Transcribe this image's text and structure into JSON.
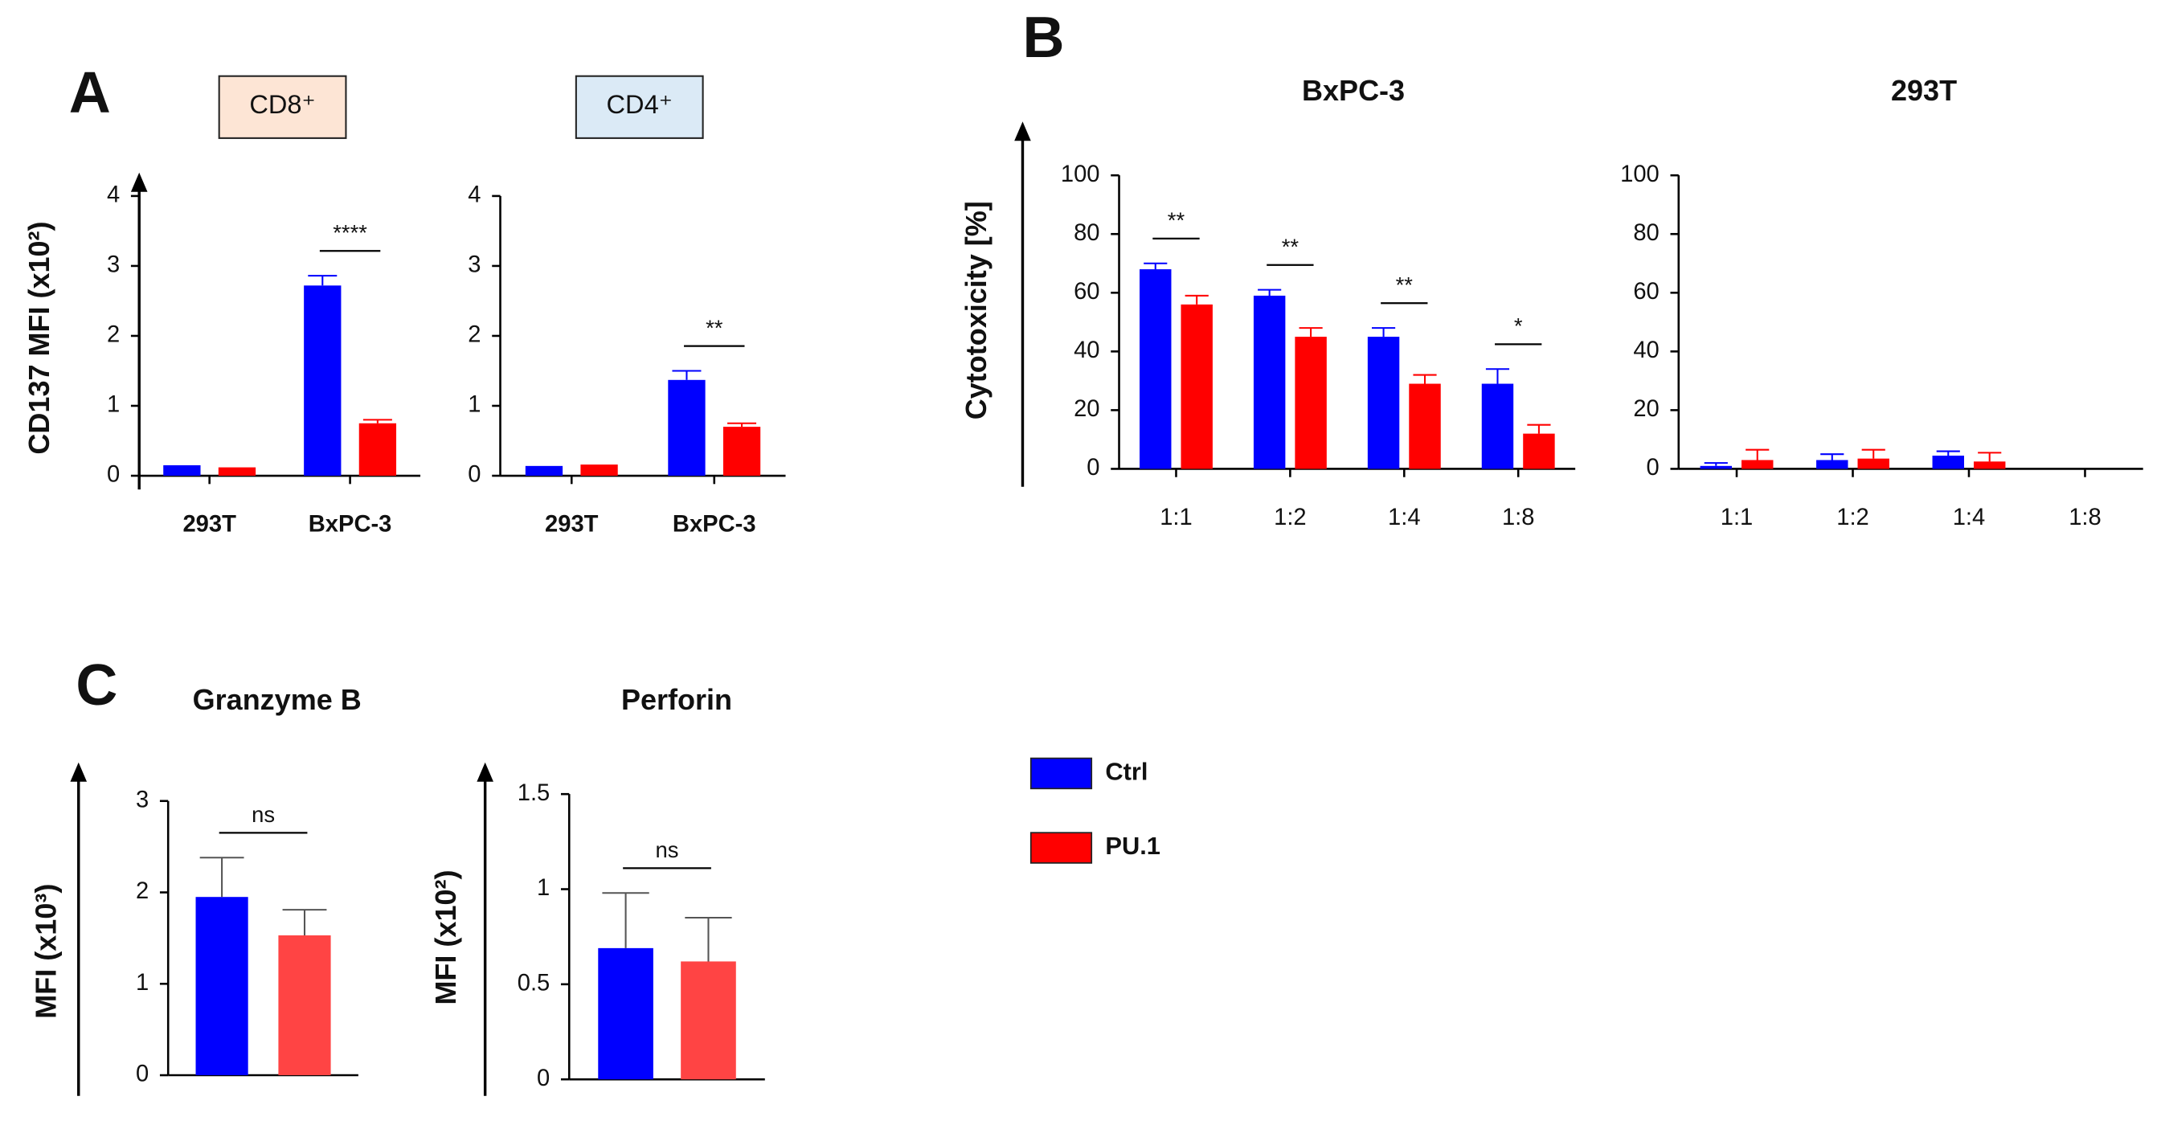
{
  "chart_data": [
    {
      "type": "bar",
      "panel": "A",
      "title": "CD8⁺",
      "title_box_color": "#fde5d5",
      "ylabel": "CD137 MFI (x10²)",
      "categories": [
        "293T",
        "BxPC-3"
      ],
      "series": [
        {
          "color": "#0000ff",
          "values": [
            0.15,
            2.72
          ],
          "errors": [
            null,
            0.14
          ]
        },
        {
          "color": "#ff0000",
          "values": [
            0.12,
            0.75
          ],
          "errors": [
            null,
            0.05
          ]
        }
      ],
      "ylim": [
        0,
        4
      ],
      "yticks": [
        0,
        1,
        2,
        3,
        4
      ],
      "annotations": [
        {
          "text": "****",
          "category": 1
        }
      ]
    },
    {
      "type": "bar",
      "title": "CD4⁺",
      "title_box_color": "#dbeaf6",
      "categories": [
        "293T",
        "BxPC-3"
      ],
      "series": [
        {
          "color": "#0000ff",
          "values": [
            0.14,
            1.37
          ],
          "errors": [
            null,
            0.13
          ]
        },
        {
          "color": "#ff0000",
          "values": [
            0.16,
            0.7
          ],
          "errors": [
            null,
            0.05
          ]
        }
      ],
      "ylim": [
        0,
        4
      ],
      "yticks": [
        0,
        1,
        2,
        3,
        4
      ],
      "annotations": [
        {
          "text": "**",
          "category": 1
        }
      ]
    },
    {
      "type": "bar",
      "panel": "B",
      "title": "BxPC-3",
      "ylabel": "Cytotoxicity [%]",
      "categories": [
        "1:1",
        "1:2",
        "1:4",
        "1:8"
      ],
      "series": [
        {
          "color": "#0000ff",
          "values": [
            68,
            59,
            45,
            29
          ],
          "errors": [
            2,
            2,
            3,
            5
          ]
        },
        {
          "color": "#ff0000",
          "values": [
            56,
            45,
            29,
            12
          ],
          "errors": [
            3,
            3,
            3,
            3
          ]
        }
      ],
      "ylim": [
        0,
        100
      ],
      "yticks": [
        0,
        20,
        40,
        60,
        80,
        100
      ],
      "annotations": [
        {
          "text": "**",
          "category": 0
        },
        {
          "text": "**",
          "category": 1
        },
        {
          "text": "**",
          "category": 2
        },
        {
          "text": "*",
          "category": 3
        }
      ]
    },
    {
      "type": "bar",
      "title": "293T",
      "categories": [
        "1:1",
        "1:2",
        "1:4",
        "1:8"
      ],
      "series": [
        {
          "color": "#0000ff",
          "values": [
            1,
            3,
            4.5,
            null
          ],
          "errors": [
            1,
            2,
            1.5,
            null
          ]
        },
        {
          "color": "#ff0000",
          "values": [
            3,
            3.5,
            2.5,
            null
          ],
          "errors": [
            3.5,
            3,
            3,
            null
          ]
        }
      ],
      "ylim": [
        0,
        100
      ],
      "yticks": [
        0,
        20,
        40,
        60,
        80,
        100
      ],
      "annotations": []
    },
    {
      "type": "bar",
      "panel": "C",
      "title": "Granzyme B",
      "ylabel": "MFI (x10³)",
      "error_color": "#555555",
      "categories": [
        null
      ],
      "series": [
        {
          "color": "#0000ff",
          "values": [
            1.95
          ],
          "errors": [
            0.43
          ]
        },
        {
          "color": "#ff4444",
          "values": [
            1.53
          ],
          "errors": [
            0.28
          ]
        }
      ],
      "ylim": [
        0,
        3
      ],
      "yticks": [
        0,
        1,
        2,
        3
      ],
      "annotations": [
        {
          "text": "ns",
          "category": 0
        }
      ]
    },
    {
      "type": "bar",
      "title": "Perforin",
      "ylabel": "MFI (x10²)",
      "error_color": "#555555",
      "categories": [
        null
      ],
      "series": [
        {
          "color": "#0000ff",
          "values": [
            0.69
          ],
          "errors": [
            0.29
          ]
        },
        {
          "color": "#ff4444",
          "values": [
            0.62
          ],
          "errors": [
            0.23
          ]
        }
      ],
      "ylim": [
        0,
        1.5
      ],
      "yticks": [
        0,
        0.5,
        1,
        1.5
      ],
      "annotations": [
        {
          "text": "ns",
          "category": 0
        }
      ]
    }
  ],
  "legend": {
    "entries": [
      {
        "name": "Ctrl",
        "color": "#0000ff"
      },
      {
        "name": "PU.1",
        "color": "#ff0000"
      }
    ]
  }
}
